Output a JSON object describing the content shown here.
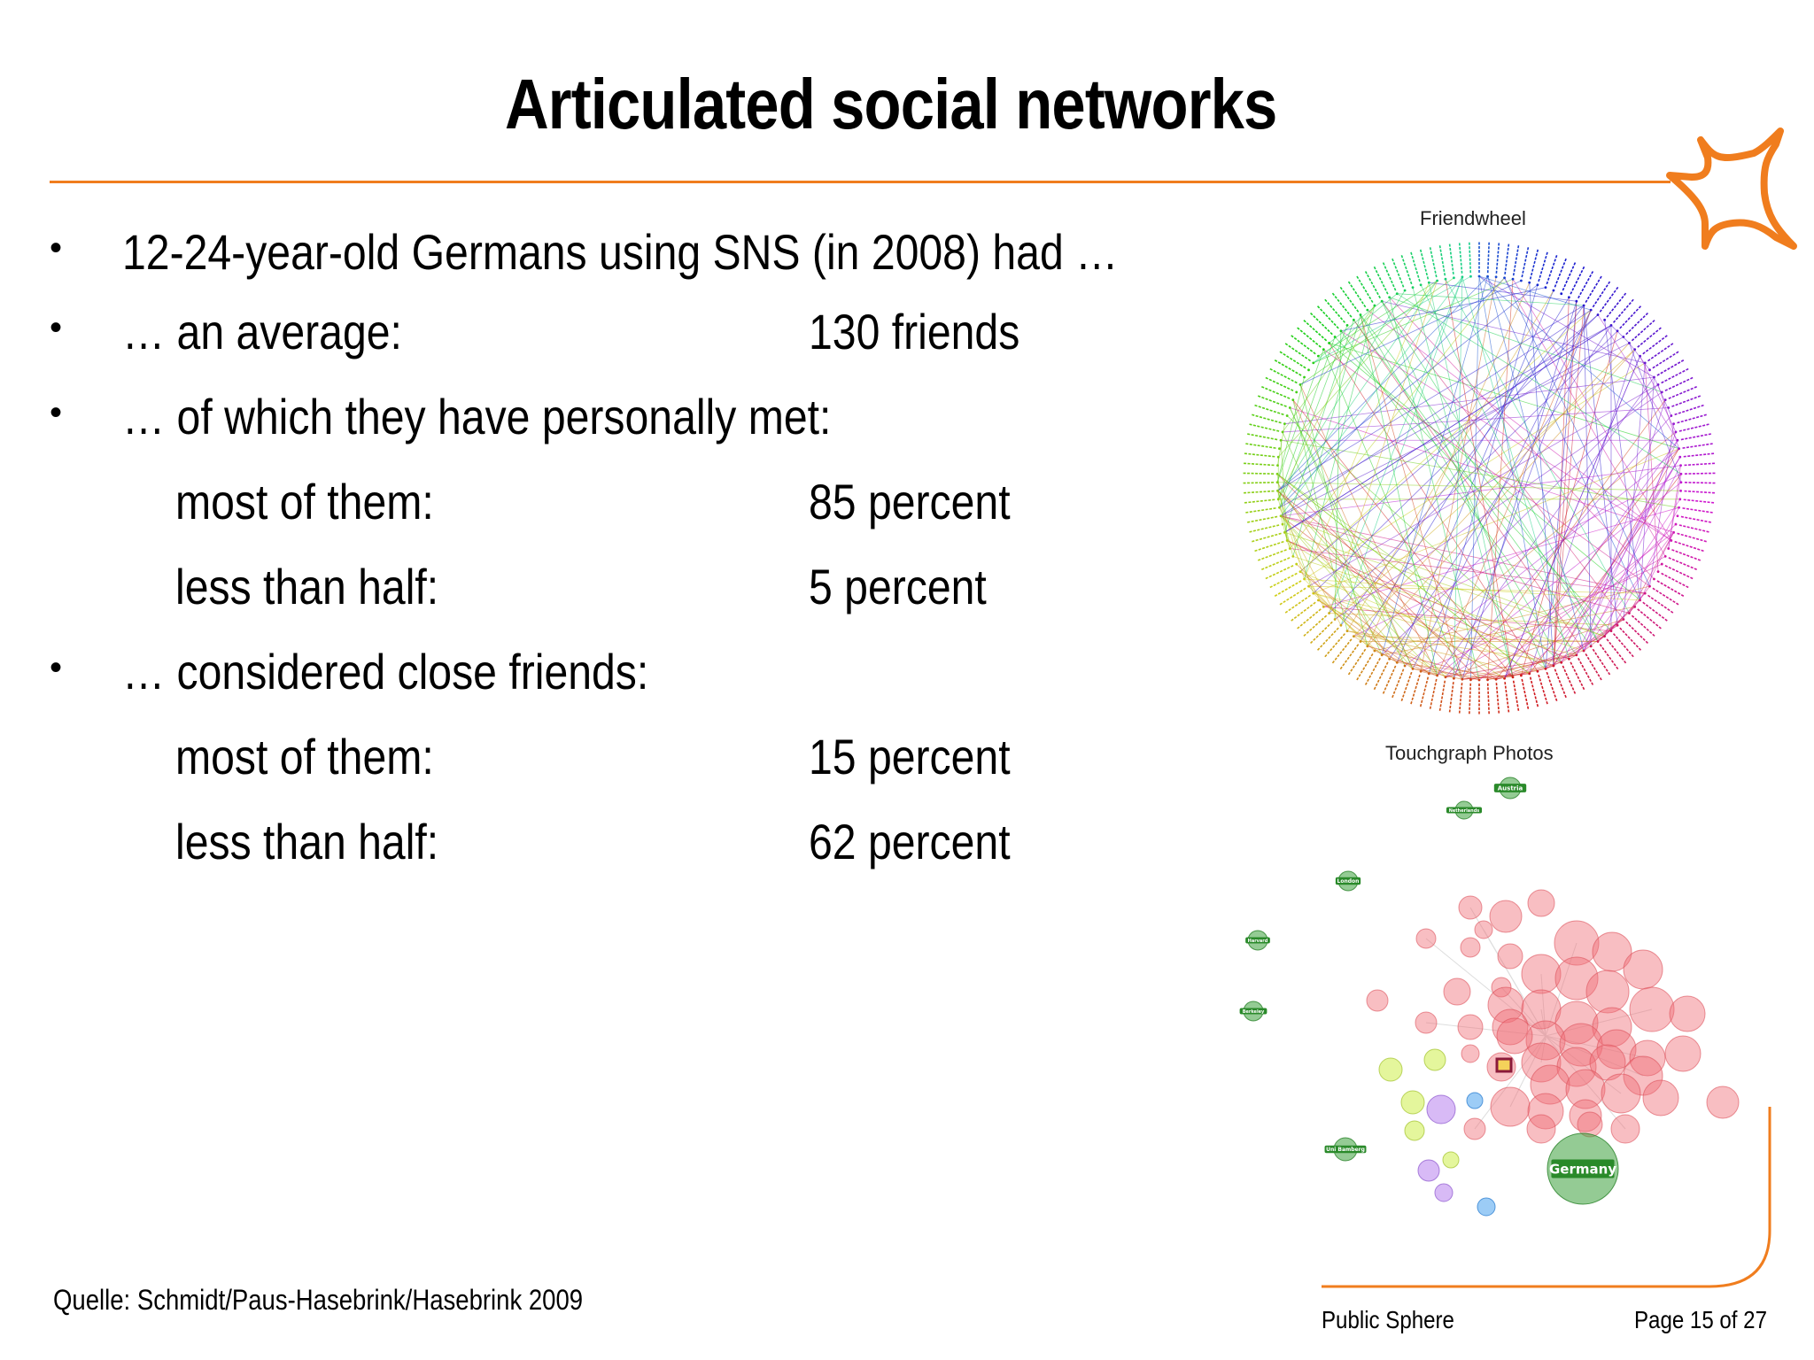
{
  "slide": {
    "title": "Articulated social networks",
    "bullets": [
      {
        "text": "12-24-year-old Germans using SNS (in 2008) had …"
      },
      {
        "text": "… an average:",
        "value": "130 friends"
      },
      {
        "text": "… of which they have personally met:"
      },
      {
        "text": "most of them:",
        "value": "85 percent",
        "indent": true
      },
      {
        "text": "less than half:",
        "value": "5 percent",
        "indent": true
      },
      {
        "text": "… considered close friends:"
      },
      {
        "text": "most of them:",
        "value": "15 percent",
        "indent": true
      },
      {
        "text": "less than half:",
        "value": "62 percent",
        "indent": true
      }
    ],
    "source": "Quelle: Schmidt/Paus-Hasebrink/Hasebrink 2009"
  },
  "figures": {
    "friendwheel_label": "Friendwheel",
    "touchgraph_label": "Touchgraph Photos",
    "touchgraph_nodes": [
      "Austria",
      "Netherlands",
      "London",
      "Harvard",
      "Berkeley",
      "Uni Bamberg",
      "Germany"
    ]
  },
  "footer": {
    "section": "Public Sphere",
    "page": "Page 15 of 27"
  },
  "colors": {
    "accent": "#f07d1e"
  }
}
